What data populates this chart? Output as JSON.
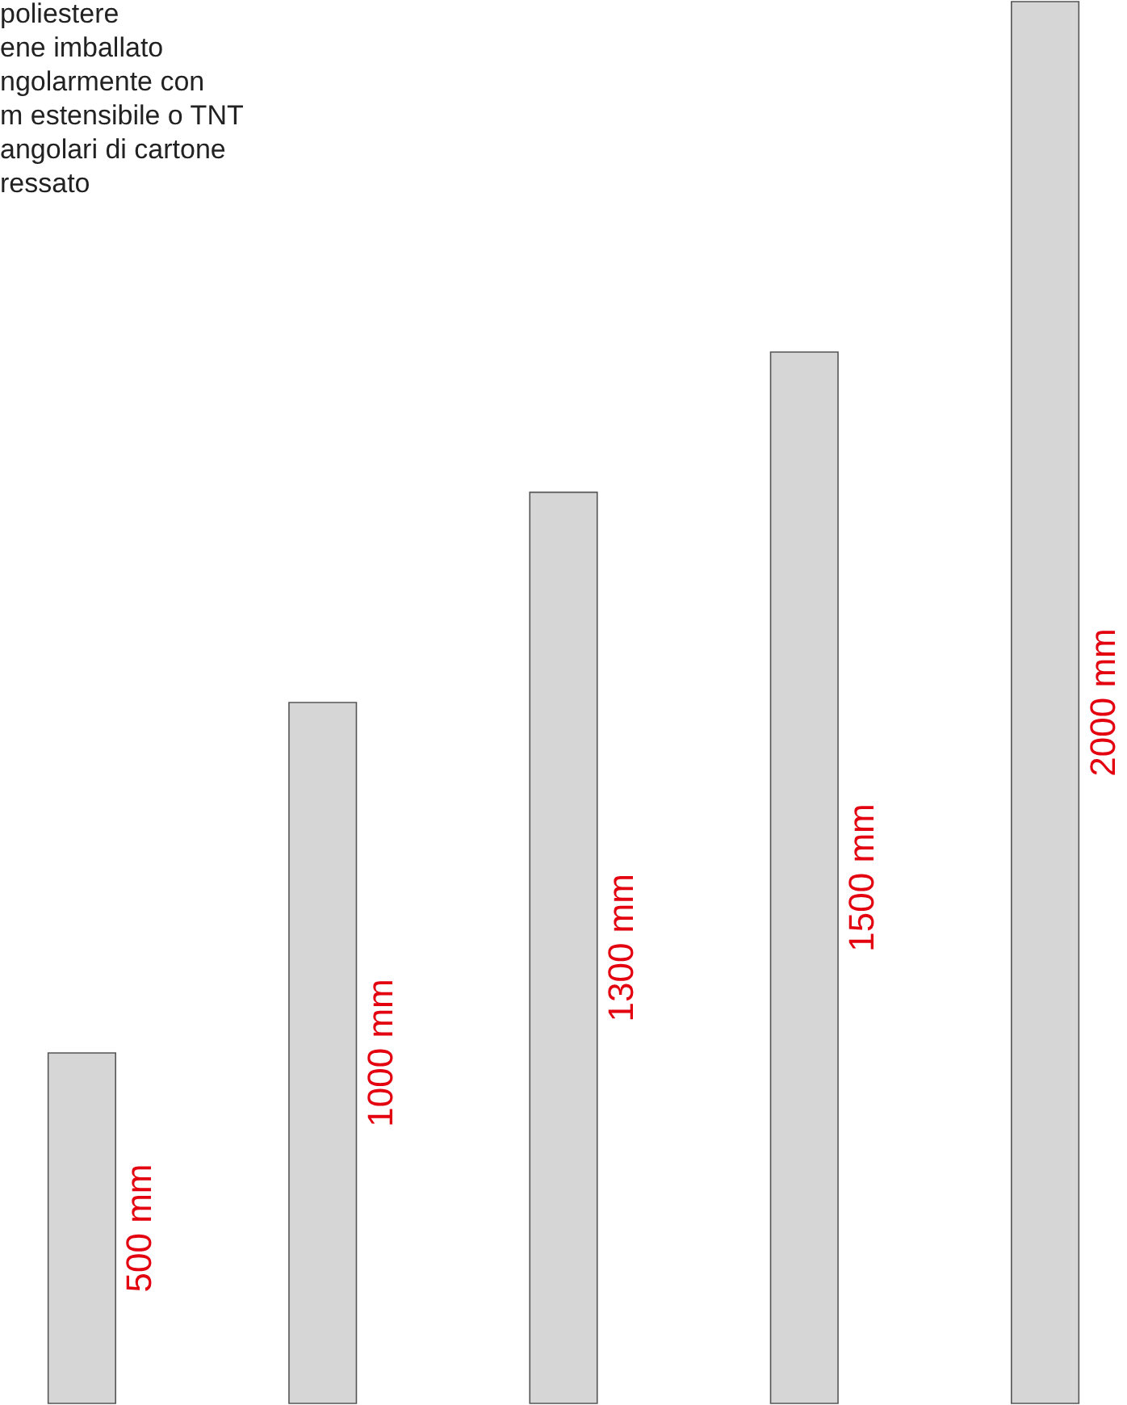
{
  "chart_data": {
    "type": "bar",
    "categories": [
      null,
      null,
      null,
      null,
      null
    ],
    "values": [
      500,
      1000,
      1300,
      1500,
      2000
    ],
    "value_labels": [
      "500 mm",
      "1000 mm",
      "1300 mm",
      "1500 mm",
      "2000 mm"
    ],
    "color": "#d6d6d6",
    "annotations": [
      "poliestere\nene imballato\nngolarmente con\nm estensibile o TNT\nangolari di cartone\nressato"
    ]
  }
}
